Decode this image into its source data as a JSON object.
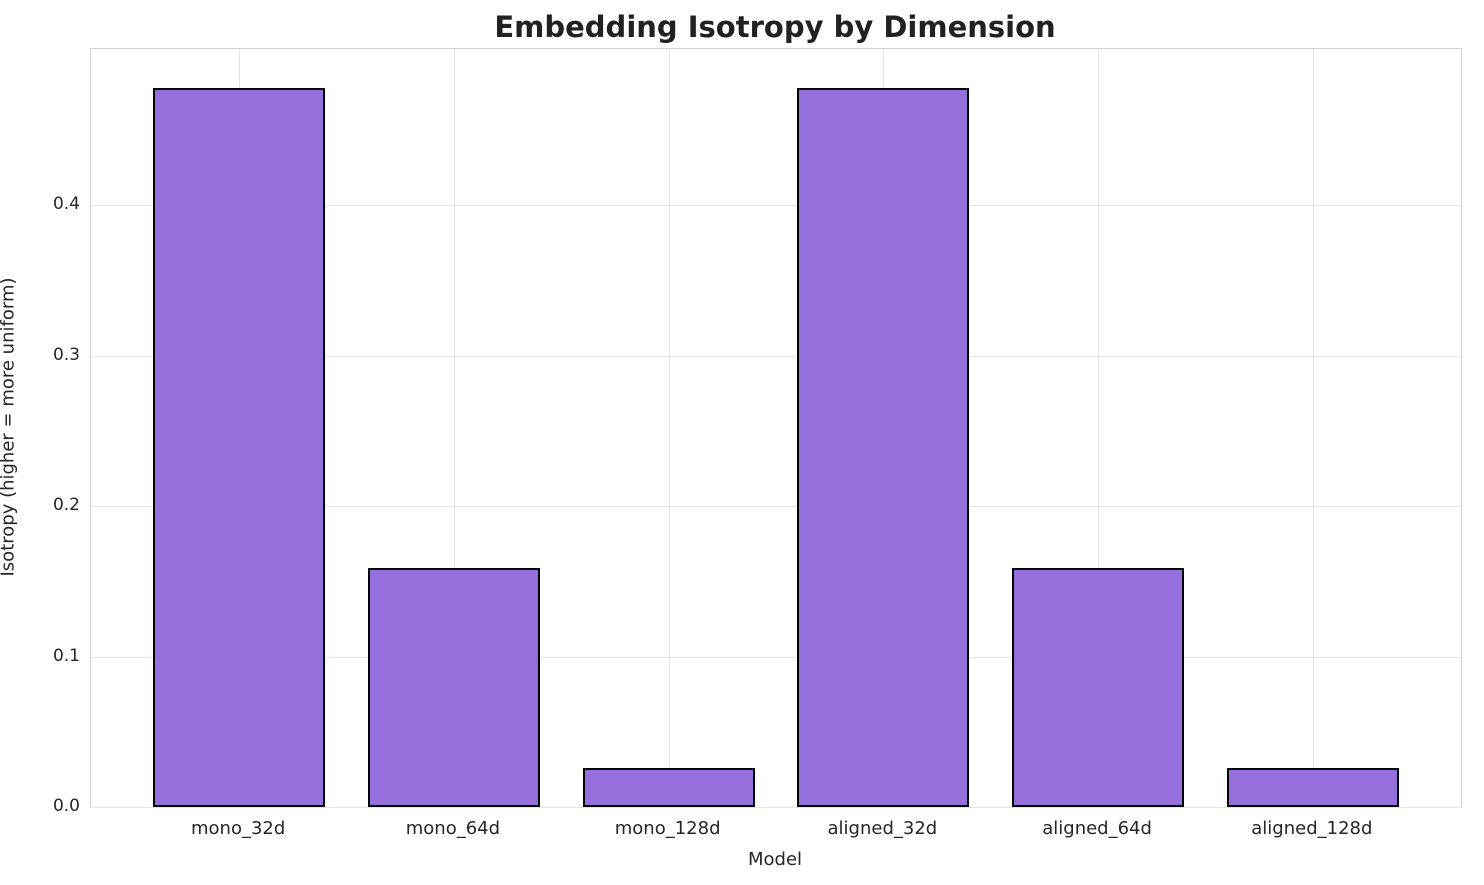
{
  "chart_data": {
    "type": "bar",
    "title": "Embedding Isotropy by Dimension",
    "xlabel": "Model",
    "ylabel": "Isotropy (higher = more uniform)",
    "categories": [
      "mono_32d",
      "mono_64d",
      "mono_128d",
      "aligned_32d",
      "aligned_64d",
      "aligned_128d"
    ],
    "values": [
      0.478,
      0.159,
      0.026,
      0.478,
      0.159,
      0.026
    ],
    "yticks": [
      0.0,
      0.1,
      0.2,
      0.3,
      0.4
    ],
    "ytick_labels": [
      "0.0",
      "0.1",
      "0.2",
      "0.3",
      "0.4"
    ],
    "ylim": [
      0,
      0.504
    ],
    "grid": true,
    "legend": "none",
    "bar_color": "#9370DB",
    "bar_edge_color": "#000000"
  }
}
